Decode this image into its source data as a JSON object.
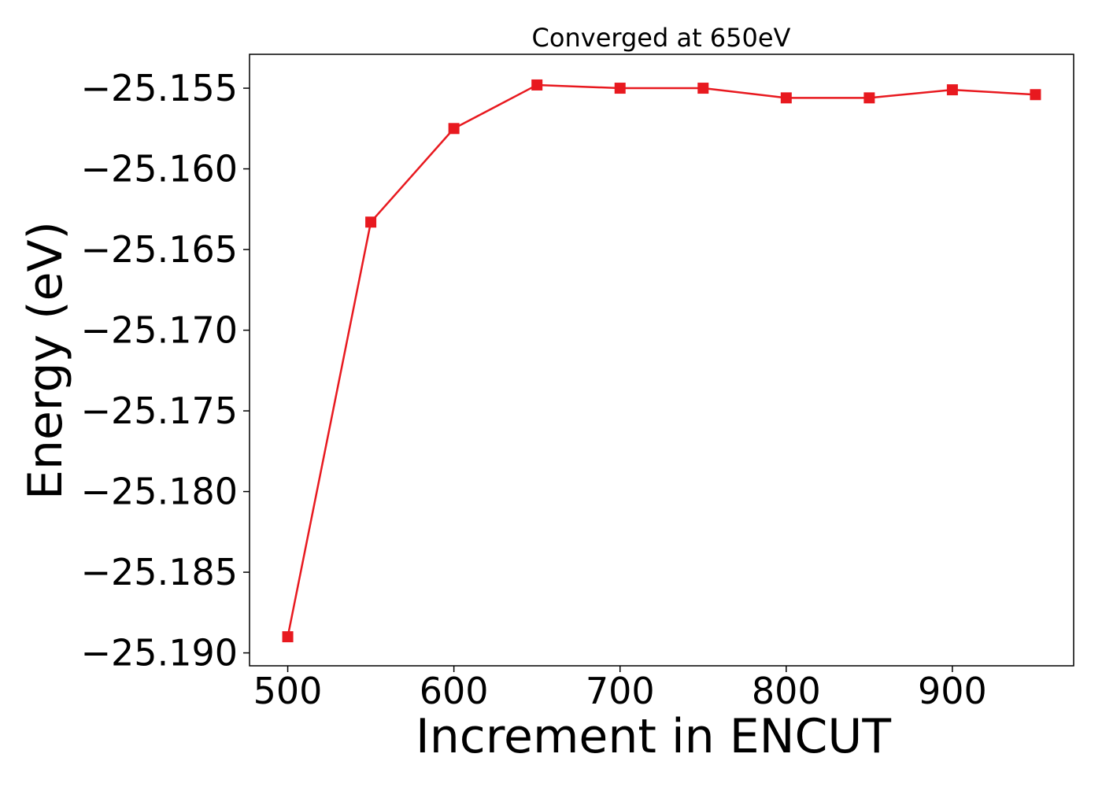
{
  "chart_data": {
    "type": "line",
    "title": "Converged at 650eV",
    "xlabel": "Increment in ENCUT",
    "ylabel": "Energy (eV)",
    "xlim": [
      477,
      973
    ],
    "ylim": [
      -25.1908,
      -25.1529
    ],
    "x_ticks": [
      500,
      600,
      700,
      800,
      900
    ],
    "x_tick_labels": [
      "500",
      "600",
      "700",
      "800",
      "900"
    ],
    "y_ticks": [
      -25.155,
      -25.16,
      -25.165,
      -25.17,
      -25.175,
      -25.18,
      -25.185,
      -25.19
    ],
    "y_tick_labels": [
      "−25.155",
      "−25.160",
      "−25.165",
      "−25.170",
      "−25.175",
      "−25.180",
      "−25.185",
      "−25.190"
    ],
    "grid": false,
    "legend": "none",
    "series": [
      {
        "color": "#e8191f",
        "marker": "square",
        "x": [
          500,
          550,
          600,
          650,
          700,
          750,
          800,
          850,
          900,
          950
        ],
        "y": [
          -25.189,
          -25.1633,
          -25.1575,
          -25.1548,
          -25.155,
          -25.155,
          -25.1556,
          -25.1556,
          -25.1551,
          -25.1554
        ]
      }
    ]
  }
}
